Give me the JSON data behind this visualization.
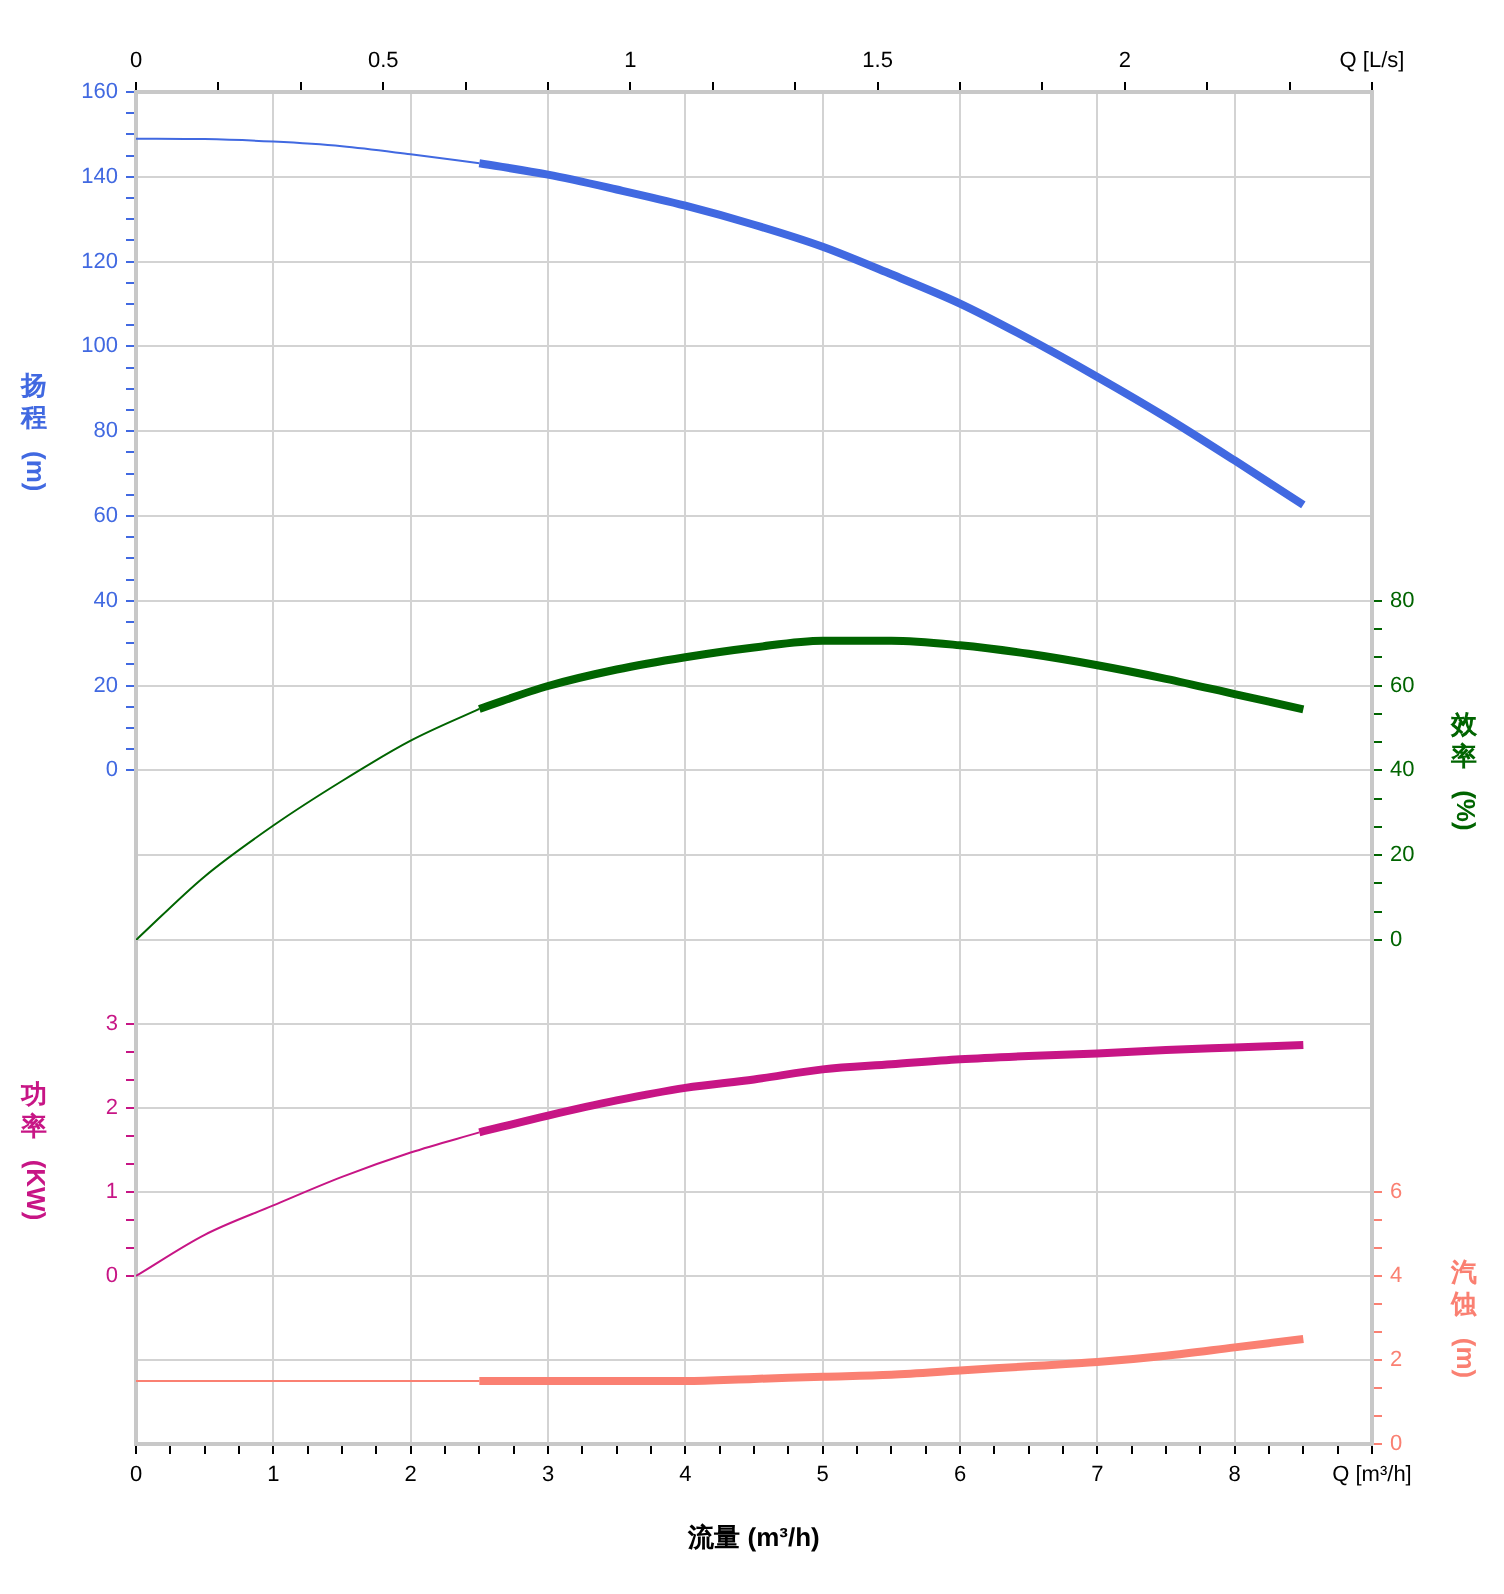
{
  "chart_data": [
    {
      "type": "line",
      "ylabel": "扬程 (m)",
      "y2label": "效率 (%)",
      "xlim": [
        0,
        9
      ],
      "xticks": [
        0,
        1,
        2,
        3,
        4,
        5,
        6,
        7,
        8,
        9
      ],
      "tick_labels": "y",
      "x2lim": [
        0,
        2.5
      ],
      "x2ticks": [
        0,
        {
          "value": 0.1667,
          "label": null
        },
        {
          "value": 0.3333,
          "label": null
        },
        0.5,
        {
          "value": 0.6667,
          "label": null
        },
        {
          "value": 0.8333,
          "label": null
        },
        1,
        {
          "value": 1.1667,
          "label": null
        },
        {
          "value": 1.3333,
          "label": null
        },
        1.5,
        {
          "value": 1.6667,
          "label": null
        },
        {
          "value": 1.8333,
          "label": null
        },
        2,
        {
          "value": 2.1667,
          "label": null
        },
        {
          "value": 2.3333,
          "label": null
        },
        {
          "value": 2.5,
          "label": "Q [L/s]"
        }
      ],
      "ylim": [
        -40,
        160
      ],
      "yticks": [
        0,
        {
          "value": 5,
          "label": null
        },
        {
          "value": 10,
          "label": null
        },
        {
          "value": 15,
          "label": null
        },
        20,
        {
          "value": 25,
          "label": null
        },
        {
          "value": 30,
          "label": null
        },
        {
          "value": 35,
          "label": null
        },
        40,
        {
          "value": 45,
          "label": null
        },
        {
          "value": 50,
          "label": null
        },
        {
          "value": 55,
          "label": null
        },
        60,
        {
          "value": 65,
          "label": null
        },
        {
          "value": 70,
          "label": null
        },
        {
          "value": 75,
          "label": null
        },
        80,
        {
          "value": 85,
          "label": null
        },
        {
          "value": 90,
          "label": null
        },
        {
          "value": 95,
          "label": null
        },
        100,
        {
          "value": 105,
          "label": null
        },
        {
          "value": 110,
          "label": null
        },
        {
          "value": 115,
          "label": null
        },
        120,
        {
          "value": 125,
          "label": null
        },
        {
          "value": 130,
          "label": null
        },
        {
          "value": 135,
          "label": null
        },
        140,
        {
          "value": 145,
          "label": null
        },
        {
          "value": 150,
          "label": null
        },
        {
          "value": 155,
          "label": null
        },
        160
      ],
      "y2lim": [
        0,
        200
      ],
      "y2ticks": [
        0,
        {
          "value": 6.6667,
          "label": null
        },
        {
          "value": 13.3333,
          "label": null
        },
        20,
        {
          "value": 26.6667,
          "label": null
        },
        {
          "value": 33.3333,
          "label": null
        },
        40,
        {
          "value": 46.6667,
          "label": null
        },
        {
          "value": 53.3333,
          "label": null
        },
        60,
        {
          "value": 66.6667,
          "label": null
        },
        {
          "value": 73.3333,
          "label": null
        },
        80
      ],
      "grid": true,
      "legend": false,
      "marker": "none",
      "series": [
        {
          "axis": "y",
          "color": "#4169e1",
          "x": [
            0,
            0.5,
            1,
            1.5,
            2,
            2.5
          ],
          "values": [
            149,
            148.9,
            148.3,
            147.2,
            145.3,
            143.2
          ]
        },
        {
          "axis": "y",
          "color": "#4169e1",
          "x": [
            2.5,
            3,
            3.5,
            4,
            4.5,
            5,
            5.5,
            6,
            6.5,
            7,
            7.5,
            8,
            8.5
          ],
          "values": [
            143.2,
            140.5,
            137,
            133.2,
            128.7,
            123.5,
            117,
            110.1,
            101.8,
            92.8,
            83.3,
            73.1,
            62.6
          ]
        },
        {
          "axis": "y2",
          "color": "#006400",
          "x": [
            0,
            0.5,
            1,
            1.5,
            2,
            2.5
          ],
          "values": [
            0,
            15,
            27,
            37.5,
            47,
            54.5
          ]
        },
        {
          "axis": "y2",
          "color": "#006400",
          "x": [
            2.5,
            3,
            3.5,
            4,
            4.5,
            5,
            5.5,
            6,
            6.5,
            7,
            7.5,
            8,
            8.5
          ],
          "values": [
            54.5,
            59.9,
            63.8,
            66.7,
            69,
            70.6,
            70.6,
            69.5,
            67.5,
            64.8,
            61.6,
            58,
            54.4
          ]
        }
      ]
    },
    {
      "type": "line",
      "xlabel": "流量 (m³/h)",
      "ylabel": "功率 (KW)",
      "y2label": "汽蚀 (m)",
      "xlim": [
        0,
        9
      ],
      "xticks": [
        0,
        {
          "value": 0.25,
          "label": null
        },
        {
          "value": 0.5,
          "label": null
        },
        {
          "value": 0.75,
          "label": null
        },
        1,
        {
          "value": 1.25,
          "label": null
        },
        {
          "value": 1.5,
          "label": null
        },
        {
          "value": 1.75,
          "label": null
        },
        2,
        {
          "value": 2.25,
          "label": null
        },
        {
          "value": 2.5,
          "label": null
        },
        {
          "value": 2.75,
          "label": null
        },
        3,
        {
          "value": 3.25,
          "label": null
        },
        {
          "value": 3.5,
          "label": null
        },
        {
          "value": 3.75,
          "label": null
        },
        4,
        {
          "value": 4.25,
          "label": null
        },
        {
          "value": 4.5,
          "label": null
        },
        {
          "value": 4.75,
          "label": null
        },
        5,
        {
          "value": 5.25,
          "label": null
        },
        {
          "value": 5.5,
          "label": null
        },
        {
          "value": 5.75,
          "label": null
        },
        6,
        {
          "value": 6.25,
          "label": null
        },
        {
          "value": 6.5,
          "label": null
        },
        {
          "value": 6.75,
          "label": null
        },
        7,
        {
          "value": 7.25,
          "label": null
        },
        {
          "value": 7.5,
          "label": null
        },
        {
          "value": 7.75,
          "label": null
        },
        8,
        {
          "value": 8.25,
          "label": null
        },
        {
          "value": 8.5,
          "label": null
        },
        {
          "value": 8.75,
          "label": null
        },
        {
          "value": 9,
          "label": "Q [m³/h]"
        }
      ],
      "ylim": [
        -2,
        4
      ],
      "yticks": [
        0,
        {
          "value": 0.3333,
          "label": null
        },
        {
          "value": 0.6667,
          "label": null
        },
        1,
        {
          "value": 1.3333,
          "label": null
        },
        {
          "value": 1.6667,
          "label": null
        },
        2,
        {
          "value": 2.3333,
          "label": null
        },
        {
          "value": 2.6667,
          "label": null
        },
        3
      ],
      "y2lim": [
        0,
        12
      ],
      "y2ticks": [
        0,
        {
          "value": 0.6667,
          "label": null
        },
        {
          "value": 1.3333,
          "label": null
        },
        2,
        {
          "value": 2.6667,
          "label": null
        },
        {
          "value": 3.3333,
          "label": null
        },
        4,
        {
          "value": 4.6667,
          "label": null
        },
        {
          "value": 5.3333,
          "label": null
        },
        6
      ],
      "grid": true,
      "legend": false,
      "marker": "none",
      "series": [
        {
          "axis": "y",
          "color": "#c71585",
          "x": [
            0,
            0.5,
            1,
            1.5,
            2,
            2.5
          ],
          "values": [
            0,
            0.49,
            0.84,
            1.18,
            1.47,
            1.71
          ]
        },
        {
          "axis": "y",
          "color": "#c71585",
          "x": [
            2.5,
            3,
            3.5,
            4,
            4.5,
            5,
            5.5,
            6,
            6.5,
            7,
            7.5,
            8,
            8.5
          ],
          "values": [
            1.71,
            1.91,
            2.09,
            2.24,
            2.34,
            2.46,
            2.52,
            2.58,
            2.62,
            2.65,
            2.69,
            2.72,
            2.75
          ]
        },
        {
          "axis": "y2",
          "color": "#fa8072",
          "x": [
            0,
            2.5
          ],
          "values": [
            1.5,
            1.5
          ]
        },
        {
          "axis": "y2",
          "color": "#fa8072",
          "x": [
            2.5,
            3,
            3.5,
            4,
            4.5,
            5,
            5.5,
            6,
            6.5,
            7,
            7.5,
            8,
            8.5
          ],
          "values": [
            1.5,
            1.5,
            1.5,
            1.5,
            1.55,
            1.6,
            1.65,
            1.75,
            1.85,
            1.95,
            2.1,
            2.3,
            2.5
          ]
        }
      ]
    }
  ]
}
